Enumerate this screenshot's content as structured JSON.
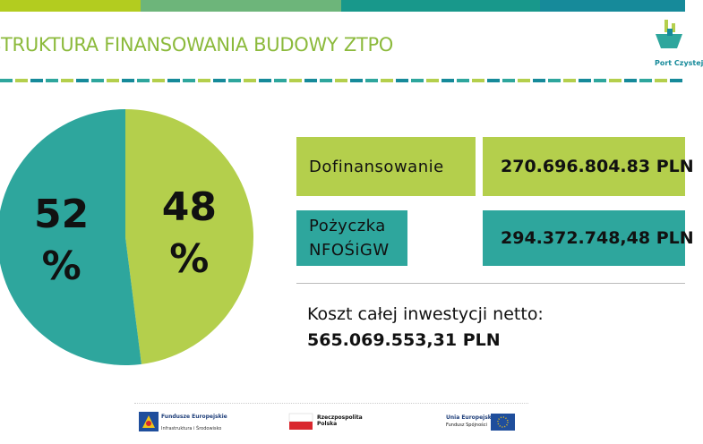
{
  "header": {
    "title": "STRUKTURA FINANSOWANIA BUDOWY ZTPO",
    "logo": "Port Czystej"
  },
  "chart_data": {
    "type": "pie",
    "categories": [
      "Dofinansowanie",
      "Pożyczka NFOŚiGW"
    ],
    "values": [
      48,
      52
    ],
    "value_labels": [
      "48 %",
      "52 %"
    ],
    "colors": [
      "#b4cf4c",
      "#2ea69d"
    ],
    "amounts": [
      "270.696.804.83 PLN",
      "294.372.748,48 PLN"
    ]
  },
  "summary": {
    "label": "Koszt całej inwestycji netto:",
    "value": "565.069.553,31 PLN"
  },
  "footer": {
    "logos": [
      {
        "title": "Fundusze Europejskie",
        "subtitle": "Infrastruktura i Środowisko"
      },
      {
        "title": "Rzeczpospolita Polska"
      },
      {
        "title": "Unia Europejska",
        "subtitle": "Fundusz Spójności"
      }
    ]
  }
}
